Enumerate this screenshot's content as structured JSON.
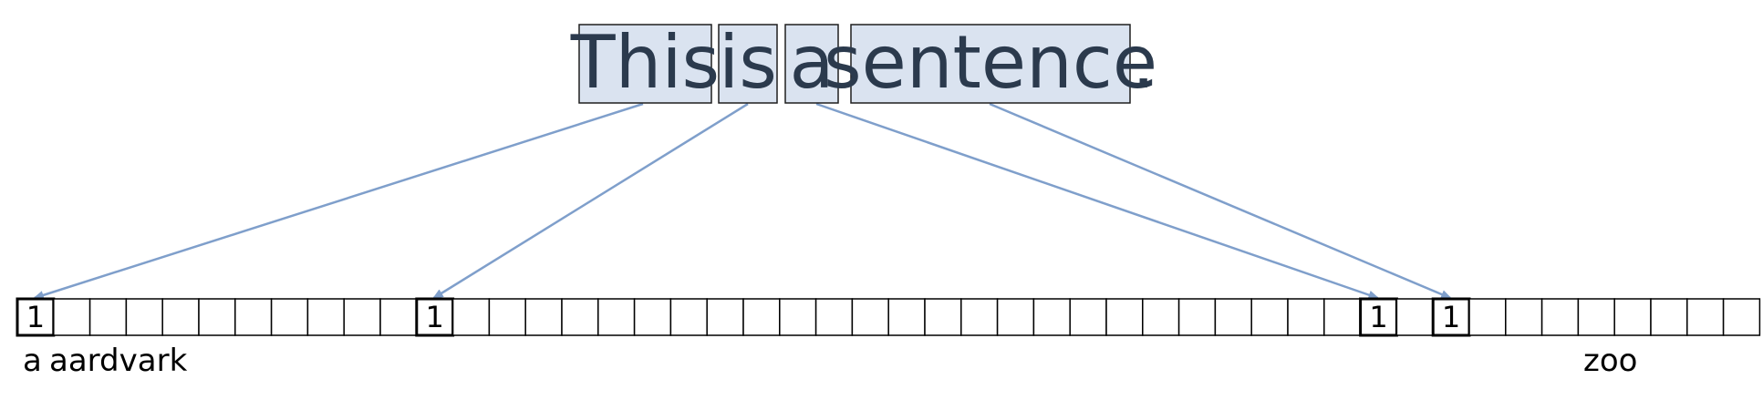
{
  "sentence": {
    "words": [
      "This",
      "is",
      "a",
      "sentence"
    ],
    "punctuation": "."
  },
  "vector": {
    "cell_count": 48,
    "hot_cells": [
      {
        "index": 0,
        "value": "1",
        "word_index": 0
      },
      {
        "index": 11,
        "value": "1",
        "word_index": 1
      },
      {
        "index": 37,
        "value": "1",
        "word_index": 2
      },
      {
        "index": 39,
        "value": "1",
        "word_index": 3
      }
    ]
  },
  "vocab_labels": {
    "first": "a",
    "second": "aardvark",
    "last": "zoo"
  },
  "colors": {
    "word_fill": "#dae3f0",
    "word_text": "#2b3a4d",
    "arrow": "#7f9fcb"
  }
}
